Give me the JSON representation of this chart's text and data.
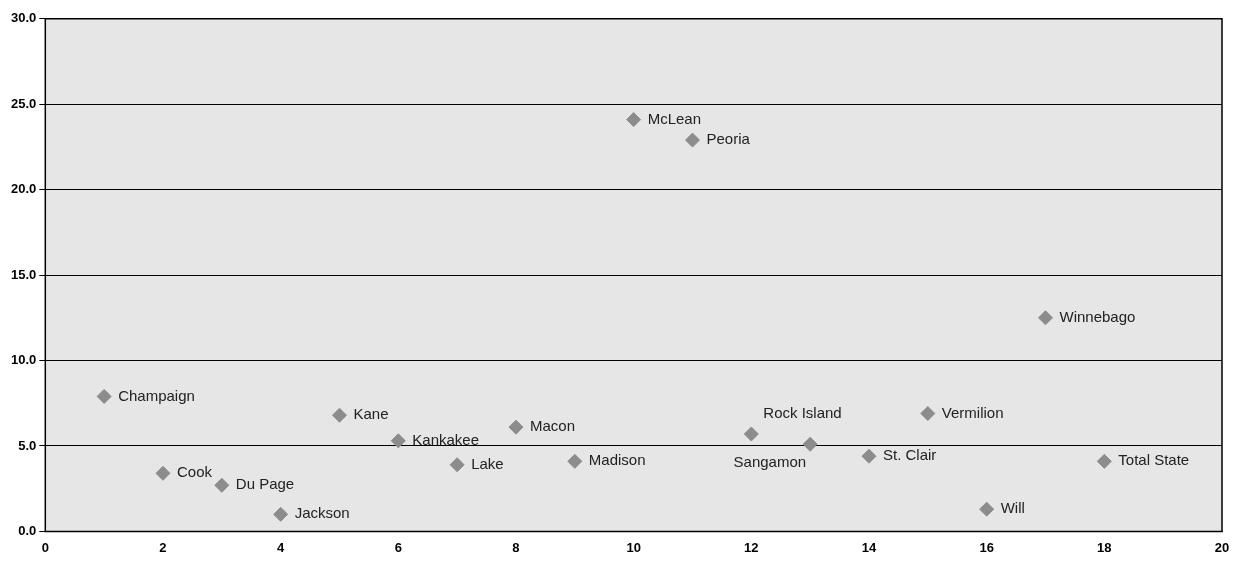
{
  "chart_data": {
    "type": "scatter",
    "xlim": [
      0,
      20
    ],
    "xticks": [
      0,
      2,
      4,
      6,
      8,
      10,
      12,
      14,
      16,
      18,
      20
    ],
    "ylim": [
      0,
      30
    ],
    "yticks": [
      {
        "value": 0,
        "label": "0.0"
      },
      {
        "value": 5,
        "label": "5.0"
      },
      {
        "value": 10,
        "label": "10.0"
      },
      {
        "value": 15,
        "label": "15.0"
      },
      {
        "value": 20,
        "label": "20.0"
      },
      {
        "value": 25,
        "label": "25.0"
      },
      {
        "value": 30,
        "label": "30.0"
      }
    ],
    "grid": "y",
    "marker": "diamond",
    "legend": false,
    "series": [
      {
        "color": "#8c8c8c",
        "x": [
          1,
          2,
          3,
          4,
          5,
          6,
          7,
          8,
          9,
          10,
          11,
          12,
          13,
          14,
          15,
          16,
          17,
          18
        ],
        "values": [
          7.9,
          3.4,
          2.7,
          1.0,
          6.8,
          5.3,
          3.9,
          6.1,
          4.1,
          24.1,
          22.9,
          5.7,
          5.1,
          4.4,
          6.9,
          1.3,
          12.5,
          4.1
        ]
      }
    ],
    "annotations": [
      {
        "text": "Champaign",
        "x": 1,
        "y": 7.9
      },
      {
        "text": "Cook",
        "x": 2,
        "y": 3.4
      },
      {
        "text": "Du Page",
        "x": 3,
        "y": 2.7
      },
      {
        "text": "Jackson",
        "x": 4,
        "y": 1.0
      },
      {
        "text": "Kane",
        "x": 5,
        "y": 6.8
      },
      {
        "text": "Kankakee",
        "x": 6,
        "y": 5.3
      },
      {
        "text": "Lake",
        "x": 7,
        "y": 3.9
      },
      {
        "text": "Macon",
        "x": 8,
        "y": 6.1
      },
      {
        "text": "Madison",
        "x": 9,
        "y": 4.1
      },
      {
        "text": "McLean",
        "x": 10,
        "y": 24.1
      },
      {
        "text": "Peoria",
        "x": 11,
        "y": 22.9
      },
      {
        "text": "Rock Island",
        "x": 12,
        "y": 5.7
      },
      {
        "text": "Sangamon",
        "x": 13,
        "y": 5.1
      },
      {
        "text": "St. Clair",
        "x": 14,
        "y": 4.4
      },
      {
        "text": "Vermilion",
        "x": 15,
        "y": 6.9
      },
      {
        "text": "Will",
        "x": 16,
        "y": 1.3
      },
      {
        "text": "Winnebago",
        "x": 17,
        "y": 12.5
      },
      {
        "text": "Total State",
        "x": 18,
        "y": 4.1
      }
    ]
  }
}
